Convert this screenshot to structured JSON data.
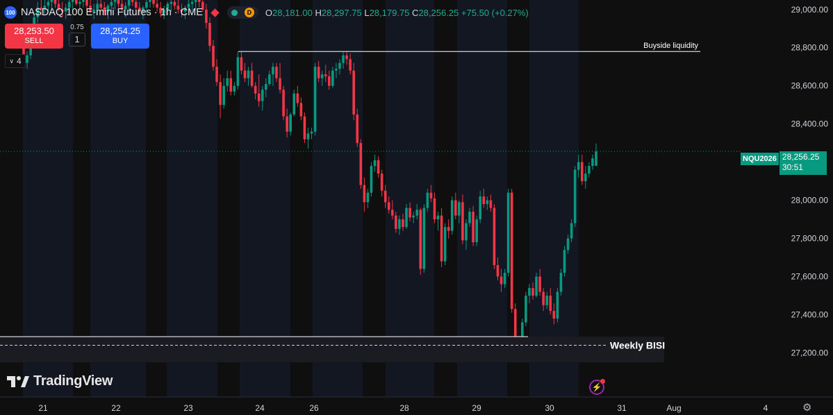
{
  "header": {
    "badge": "100",
    "title": "NASDAQ 100 E-mini Futures · 1h · CME",
    "mode_badge": "D",
    "open_label": "O",
    "open": "28,181.00",
    "high_label": "H",
    "high": "28,297.75",
    "low_label": "L",
    "low": "28,179.75",
    "close_label": "C",
    "close": "28,256.25",
    "change": "+75.50 (+0.27%)"
  },
  "trade": {
    "sell_price": "28,253.50",
    "sell_label": "SELL",
    "spread": "0.75",
    "quantity": "1",
    "buy_price": "28,254.25",
    "buy_label": "BUY"
  },
  "indicator_toggle": "4",
  "logo_text": "TradingView",
  "price_tag": {
    "symbol": "NQU2026",
    "price": "28,256.25",
    "countdown": "30:51"
  },
  "colors": {
    "up": "#089981",
    "down": "#f23645",
    "session": "#131722",
    "background": "#0f0f0f"
  },
  "icons": [
    "chevron-down-icon",
    "lightning-icon",
    "gear-icon"
  ],
  "chart_data": {
    "type": "candlestick",
    "y_axis_ticks": [
      "29,000.00",
      "28,800.00",
      "28,600.00",
      "28,400.00",
      "28,000.00",
      "27,800.00",
      "27,600.00",
      "27,400.00",
      "27,200.00"
    ],
    "ylim": [
      27140,
      29070
    ],
    "x_axis_ticks": [
      "21",
      "22",
      "23",
      "24",
      "26",
      "28",
      "29",
      "30",
      "31",
      "Aug",
      "4"
    ],
    "annotations": [
      {
        "label": "Buyside liquidity",
        "price": 28780
      },
      {
        "label": "Weekly BISI",
        "price": 27240,
        "upper": 27285
      }
    ],
    "current_price": 28256.25,
    "candles": [
      [
        28800,
        28840,
        28700,
        28720
      ],
      [
        28720,
        28780,
        28690,
        28760
      ],
      [
        28760,
        28900,
        28740,
        28880
      ],
      [
        28880,
        28980,
        28850,
        28960
      ],
      [
        28960,
        29040,
        28930,
        29010
      ],
      [
        29010,
        29050,
        28970,
        29000
      ],
      [
        29000,
        29060,
        28980,
        29020
      ],
      [
        29020,
        29060,
        28990,
        29040
      ],
      [
        29040,
        29070,
        29000,
        29050
      ],
      [
        29050,
        29070,
        29010,
        29030
      ],
      [
        29030,
        29060,
        28990,
        29000
      ],
      [
        29000,
        29040,
        28960,
        28990
      ],
      [
        28990,
        29030,
        28950,
        29010
      ],
      [
        29010,
        29050,
        28980,
        29040
      ],
      [
        29040,
        29070,
        29000,
        29060
      ],
      [
        29060,
        29070,
        29020,
        29030
      ],
      [
        29030,
        29060,
        28990,
        29040
      ],
      [
        29040,
        29070,
        29010,
        29050
      ],
      [
        29050,
        29070,
        29000,
        29020
      ],
      [
        29020,
        29050,
        28980,
        28990
      ],
      [
        28990,
        29030,
        28950,
        29000
      ],
      [
        29000,
        29050,
        28970,
        29030
      ],
      [
        29030,
        29060,
        28990,
        29010
      ],
      [
        29010,
        29040,
        28970,
        28990
      ],
      [
        28990,
        29030,
        28950,
        29020
      ],
      [
        29020,
        29060,
        28990,
        29040
      ],
      [
        29040,
        29070,
        29000,
        29050
      ],
      [
        29050,
        29070,
        29010,
        29030
      ],
      [
        29030,
        29060,
        28990,
        29000
      ],
      [
        29000,
        29040,
        28960,
        29020
      ],
      [
        29020,
        29060,
        28990,
        29050
      ],
      [
        29050,
        29070,
        29020,
        29040
      ],
      [
        29040,
        29070,
        29000,
        29010
      ],
      [
        29010,
        29040,
        28970,
        28990
      ],
      [
        28990,
        29020,
        28950,
        29010
      ],
      [
        29010,
        29050,
        28980,
        29040
      ],
      [
        29040,
        29070,
        29010,
        29050
      ],
      [
        29050,
        29070,
        29010,
        29030
      ],
      [
        29030,
        29060,
        28990,
        29010
      ],
      [
        29010,
        29040,
        28960,
        28980
      ],
      [
        28980,
        29020,
        28950,
        29000
      ],
      [
        29000,
        29040,
        28970,
        29030
      ],
      [
        29030,
        29060,
        28990,
        29040
      ],
      [
        29040,
        29070,
        29000,
        29020
      ],
      [
        29020,
        29050,
        28980,
        29000
      ],
      [
        29000,
        29030,
        28960,
        28990
      ],
      [
        28990,
        29020,
        28950,
        29010
      ],
      [
        29010,
        29050,
        28980,
        29030
      ],
      [
        29030,
        29060,
        28990,
        29040
      ],
      [
        29040,
        29070,
        29000,
        29060
      ],
      [
        29060,
        29070,
        29010,
        29040
      ],
      [
        29040,
        29060,
        28990,
        29000
      ],
      [
        29000,
        29030,
        28900,
        28930
      ],
      [
        28930,
        28960,
        28780,
        28810
      ],
      [
        28810,
        28840,
        28680,
        28700
      ],
      [
        28700,
        28740,
        28600,
        28620
      ],
      [
        28620,
        28660,
        28430,
        28500
      ],
      [
        28500,
        28640,
        28480,
        28600
      ],
      [
        28600,
        28680,
        28570,
        28640
      ],
      [
        28640,
        28680,
        28550,
        28570
      ],
      [
        28570,
        28620,
        28550,
        28600
      ],
      [
        28600,
        28780,
        28580,
        28750
      ],
      [
        28750,
        28780,
        28660,
        28680
      ],
      [
        28680,
        28720,
        28620,
        28640
      ],
      [
        28640,
        28700,
        28600,
        28680
      ],
      [
        28680,
        28720,
        28590,
        28600
      ],
      [
        28600,
        28620,
        28530,
        28560
      ],
      [
        28560,
        28660,
        28490,
        28520
      ],
      [
        28520,
        28600,
        28470,
        28580
      ],
      [
        28580,
        28640,
        28540,
        28610
      ],
      [
        28610,
        28680,
        28600,
        28660
      ],
      [
        28660,
        28720,
        28600,
        28700
      ],
      [
        28700,
        28720,
        28620,
        28640
      ],
      [
        28640,
        28720,
        28560,
        28580
      ],
      [
        28580,
        28600,
        28420,
        28440
      ],
      [
        28440,
        28480,
        28330,
        28360
      ],
      [
        28360,
        28460,
        28340,
        28450
      ],
      [
        28450,
        28580,
        28440,
        28560
      ],
      [
        28560,
        28600,
        28490,
        28510
      ],
      [
        28510,
        28540,
        28420,
        28440
      ],
      [
        28440,
        28460,
        28300,
        28320
      ],
      [
        28320,
        28380,
        28270,
        28350
      ],
      [
        28350,
        28380,
        28320,
        28360
      ],
      [
        28360,
        28720,
        28340,
        28700
      ],
      [
        28700,
        28730,
        28620,
        28640
      ],
      [
        28640,
        28680,
        28600,
        28660
      ],
      [
        28660,
        28710,
        28620,
        28650
      ],
      [
        28650,
        28680,
        28580,
        28600
      ],
      [
        28600,
        28700,
        28590,
        28680
      ],
      [
        28680,
        28720,
        28640,
        28690
      ],
      [
        28690,
        28740,
        28660,
        28720
      ],
      [
        28720,
        28780,
        28690,
        28760
      ],
      [
        28760,
        28780,
        28710,
        28740
      ],
      [
        28740,
        28770,
        28660,
        28680
      ],
      [
        28680,
        28720,
        28420,
        28450
      ],
      [
        28450,
        28480,
        28280,
        28300
      ],
      [
        28300,
        28320,
        28060,
        28080
      ],
      [
        28080,
        28120,
        27940,
        27990
      ],
      [
        27990,
        28060,
        27960,
        28040
      ],
      [
        28040,
        28200,
        28020,
        28180
      ],
      [
        28180,
        28240,
        28150,
        28210
      ],
      [
        28210,
        28230,
        28120,
        28140
      ],
      [
        28140,
        28160,
        28020,
        28050
      ],
      [
        28050,
        28080,
        27960,
        27990
      ],
      [
        27990,
        28020,
        27930,
        27950
      ],
      [
        27950,
        28000,
        27900,
        27920
      ],
      [
        27920,
        27940,
        27830,
        27850
      ],
      [
        27850,
        27920,
        27820,
        27900
      ],
      [
        27900,
        27930,
        27840,
        27860
      ],
      [
        27860,
        27980,
        27850,
        27960
      ],
      [
        27960,
        27990,
        27890,
        27910
      ],
      [
        27910,
        27940,
        27880,
        27920
      ],
      [
        27920,
        27980,
        27900,
        27950
      ],
      [
        27950,
        27960,
        27610,
        27640
      ],
      [
        27640,
        27980,
        27620,
        27960
      ],
      [
        27960,
        28060,
        27940,
        28040
      ],
      [
        28040,
        28080,
        27990,
        28010
      ],
      [
        28010,
        28040,
        27880,
        27900
      ],
      [
        27900,
        27940,
        27840,
        27920
      ],
      [
        27920,
        27960,
        27650,
        27680
      ],
      [
        27680,
        27880,
        27660,
        27860
      ],
      [
        27860,
        27900,
        27800,
        27840
      ],
      [
        27840,
        28020,
        27820,
        28000
      ],
      [
        28000,
        28040,
        27900,
        27920
      ],
      [
        27920,
        28000,
        27880,
        27990
      ],
      [
        27990,
        28030,
        27770,
        27790
      ],
      [
        27790,
        27900,
        27740,
        27880
      ],
      [
        27880,
        27960,
        27860,
        27940
      ],
      [
        27940,
        27970,
        27760,
        27780
      ],
      [
        27780,
        27920,
        27760,
        27900
      ],
      [
        27900,
        28050,
        27880,
        28020
      ],
      [
        28020,
        28060,
        27960,
        27980
      ],
      [
        27980,
        28020,
        27950,
        28000
      ],
      [
        28000,
        28030,
        27940,
        27960
      ],
      [
        27960,
        27980,
        27640,
        27660
      ],
      [
        27660,
        27700,
        27580,
        27600
      ],
      [
        27600,
        27640,
        27520,
        27560
      ],
      [
        27560,
        27640,
        27540,
        27620
      ],
      [
        27620,
        28060,
        27600,
        28040
      ],
      [
        28040,
        28060,
        27410,
        27430
      ],
      [
        27430,
        27460,
        27250,
        27280
      ],
      [
        27280,
        27290,
        27180,
        27200
      ],
      [
        27200,
        27380,
        27190,
        27360
      ],
      [
        27360,
        27520,
        27340,
        27500
      ],
      [
        27500,
        27560,
        27460,
        27540
      ],
      [
        27540,
        27570,
        27480,
        27500
      ],
      [
        27500,
        27620,
        27490,
        27600
      ],
      [
        27600,
        27640,
        27500,
        27520
      ],
      [
        27520,
        27540,
        27420,
        27450
      ],
      [
        27450,
        27520,
        27430,
        27500
      ],
      [
        27500,
        27540,
        27400,
        27420
      ],
      [
        27420,
        27460,
        27350,
        27380
      ],
      [
        27380,
        27540,
        27360,
        27520
      ],
      [
        27520,
        27640,
        27500,
        27620
      ],
      [
        27620,
        27760,
        27600,
        27740
      ],
      [
        27740,
        27820,
        27720,
        27800
      ],
      [
        27800,
        27900,
        27780,
        27880
      ],
      [
        27880,
        28180,
        27860,
        28160
      ],
      [
        28160,
        28240,
        28120,
        28200
      ],
      [
        28200,
        28240,
        28080,
        28100
      ],
      [
        28100,
        28180,
        28060,
        28140
      ],
      [
        28140,
        28200,
        28120,
        28180
      ],
      [
        28180,
        28240,
        28160,
        28220
      ],
      [
        28181,
        28297.75,
        28179.75,
        28256.25
      ]
    ]
  }
}
